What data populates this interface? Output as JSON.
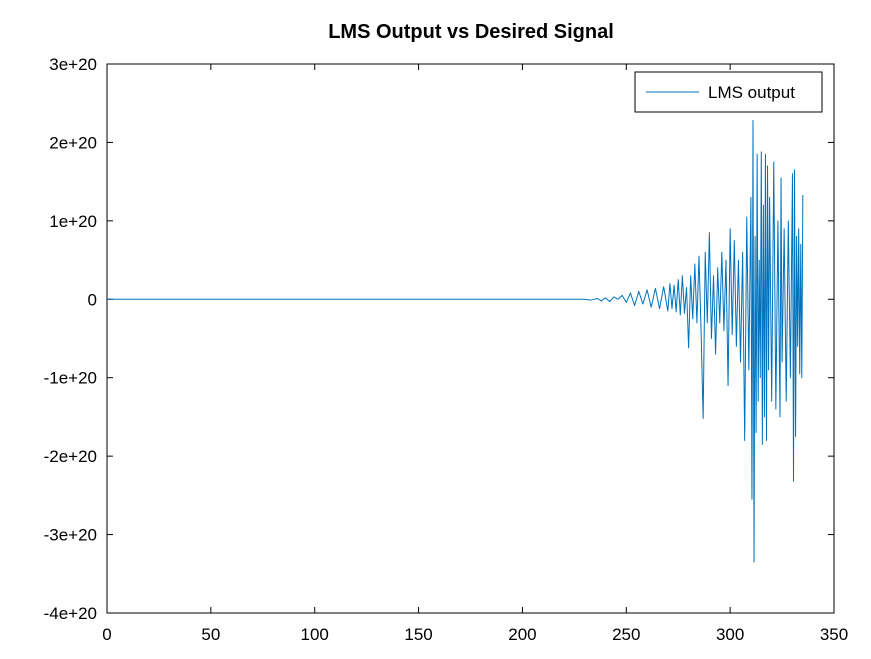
{
  "chart_data": {
    "type": "line",
    "title": "LMS Output vs Desired Signal",
    "xlabel": "",
    "ylabel": "",
    "xlim": [
      0,
      350
    ],
    "ylim": [
      -4e+20,
      3e+20
    ],
    "x_ticks": [
      0,
      50,
      100,
      150,
      200,
      250,
      300,
      350
    ],
    "x_tick_labels": [
      "0",
      "50",
      "100",
      "150",
      "200",
      "250",
      "300",
      "350"
    ],
    "y_ticks": [
      3e+20,
      2e+20,
      1e+20,
      0,
      -1e+20,
      -2e+20,
      -3e+20,
      -4e+20
    ],
    "y_tick_labels": [
      "3e+20",
      "2e+20",
      "1e+20",
      "0",
      "-1e+20",
      "-2e+20",
      "-3e+20",
      "-4e+20"
    ],
    "grid": false,
    "legend_position": "top-right",
    "series": [
      {
        "name": "LMS output",
        "color": "#0072bd",
        "points": [
          [
            0,
            0
          ],
          [
            230,
            0
          ],
          [
            233,
            -1e+18
          ],
          [
            236,
            1e+18
          ],
          [
            238,
            -2e+18
          ],
          [
            240,
            2e+18
          ],
          [
            242,
            -3e+18
          ],
          [
            244,
            3e+18
          ],
          [
            246,
            0
          ],
          [
            248,
            5e+18
          ],
          [
            250,
            -4e+18
          ],
          [
            252,
            8e+18
          ],
          [
            254,
            -8e+18
          ],
          [
            256,
            1e+19
          ],
          [
            258,
            -6e+18
          ],
          [
            260,
            1.2e+19
          ],
          [
            262,
            -1e+19
          ],
          [
            264,
            1.4e+19
          ],
          [
            266,
            -1.2e+19
          ],
          [
            268,
            1.6e+19
          ],
          [
            270,
            -1.5e+19
          ],
          [
            271,
            2e+19
          ],
          [
            272,
            -1.2e+19
          ],
          [
            273,
            1.8e+19
          ],
          [
            274,
            -1.6e+19
          ],
          [
            275,
            2.5e+19
          ],
          [
            276,
            -2e+19
          ],
          [
            277,
            3e+19
          ],
          [
            278,
            -1.8e+19
          ],
          [
            279,
            1.5e+19
          ],
          [
            280,
            -6.2e+19
          ],
          [
            281,
            3e+19
          ],
          [
            282,
            -2.5e+19
          ],
          [
            283,
            4.5e+19
          ],
          [
            284,
            -3e+19
          ],
          [
            285,
            5.5e+19
          ],
          [
            286,
            -4e+19
          ],
          [
            287,
            -1.52e+20
          ],
          [
            288,
            6e+19
          ],
          [
            289,
            -3e+19
          ],
          [
            290,
            8.5e+19
          ],
          [
            291,
            -5e+19
          ],
          [
            292,
            3e+19
          ],
          [
            293,
            -7e+19
          ],
          [
            294,
            4e+19
          ],
          [
            295,
            -3e+19
          ],
          [
            296,
            6e+19
          ],
          [
            297,
            -4e+19
          ],
          [
            298,
            5e+19
          ],
          [
            299,
            -1.1e+20
          ],
          [
            300,
            9e+19
          ],
          [
            301,
            -4.5e+19
          ],
          [
            302,
            7.5e+19
          ],
          [
            303,
            -6e+19
          ],
          [
            304,
            5e+19
          ],
          [
            305,
            -8e+19
          ],
          [
            306,
            6e+19
          ],
          [
            307,
            -1.8e+20
          ],
          [
            308,
            1.05e+20
          ],
          [
            309,
            -9e+19
          ],
          [
            310,
            1.3e+20
          ],
          [
            310.5,
            -2.55e+20
          ],
          [
            311,
            2.28e+20
          ],
          [
            311.5,
            -3.35e+20
          ],
          [
            312,
            8e+19
          ],
          [
            312.5,
            -1.7e+20
          ],
          [
            313,
            1.85e+20
          ],
          [
            313.5,
            -1.3e+20
          ],
          [
            314,
            5e+19
          ],
          [
            314.5,
            -1e+20
          ],
          [
            315,
            1.88e+20
          ],
          [
            315.5,
            -1.85e+20
          ],
          [
            316,
            1.2e+20
          ],
          [
            316.5,
            -1.5e+20
          ],
          [
            317,
            1.85e+20
          ],
          [
            317.5,
            -1.8e+20
          ],
          [
            318,
            1.7e+20
          ],
          [
            318.5,
            -9e+19
          ],
          [
            319,
            1.3e+20
          ],
          [
            320,
            -1.3e+20
          ],
          [
            321,
            1.75e+20
          ],
          [
            322,
            -1.4e+20
          ],
          [
            323,
            1e+20
          ],
          [
            324,
            -1.5e+20
          ],
          [
            324.5,
            1.55e+20
          ],
          [
            325,
            -8e+19
          ],
          [
            326,
            9e+19
          ],
          [
            327,
            -1.3e+20
          ],
          [
            328,
            1e+20
          ],
          [
            329,
            -1e+20
          ],
          [
            330,
            1.6e+20
          ],
          [
            330.5,
            -2.32e+20
          ],
          [
            331,
            1.65e+20
          ],
          [
            331.5,
            -1.75e+20
          ],
          [
            332,
            8e+19
          ],
          [
            332.5,
            -6e+19
          ],
          [
            333,
            9e+19
          ],
          [
            333.5,
            -9.5e+19
          ],
          [
            334,
            7e+19
          ],
          [
            334.5,
            -1e+20
          ],
          [
            335,
            1.33e+20
          ]
        ]
      }
    ]
  }
}
